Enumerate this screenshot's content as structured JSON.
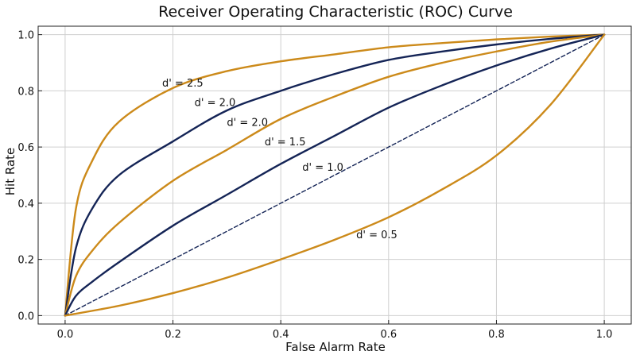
{
  "chart_data": {
    "type": "line",
    "title": "Receiver Operating Characteristic (ROC) Curve",
    "xlabel": "False Alarm Rate",
    "ylabel": "Hit Rate",
    "xlim": [
      -0.05,
      1.05
    ],
    "ylim": [
      -0.03,
      1.03
    ],
    "xticks": [
      0.0,
      0.2,
      0.4,
      0.6,
      0.8,
      1.0
    ],
    "yticks": [
      0.0,
      0.2,
      0.4,
      0.6,
      0.8,
      1.0
    ],
    "xtick_labels": [
      "0.0",
      "0.2",
      "0.4",
      "0.6",
      "0.8",
      "1.0"
    ],
    "ytick_labels": [
      "0.0",
      "0.2",
      "0.4",
      "0.6",
      "0.8",
      "1.0"
    ],
    "grid": true,
    "colors": {
      "gold": "#cc8a1a",
      "navy": "#142456"
    },
    "series": [
      {
        "d_prime": 2.5,
        "color": "gold",
        "style": "solid",
        "x": [
          0,
          0.02,
          0.05,
          0.1,
          0.2,
          0.3,
          0.4,
          0.5,
          0.6,
          0.7,
          0.8,
          0.9,
          1.0
        ],
        "y": [
          0,
          0.38,
          0.55,
          0.69,
          0.81,
          0.87,
          0.905,
          0.93,
          0.955,
          0.97,
          0.983,
          0.993,
          1.0
        ]
      },
      {
        "d_prime": 2.0,
        "color": "navy",
        "style": "solid",
        "x": [
          0,
          0.02,
          0.05,
          0.1,
          0.2,
          0.3,
          0.4,
          0.5,
          0.6,
          0.7,
          0.8,
          0.9,
          1.0
        ],
        "y": [
          0,
          0.24,
          0.38,
          0.5,
          0.62,
          0.73,
          0.8,
          0.86,
          0.91,
          0.94,
          0.965,
          0.985,
          1.0
        ]
      },
      {
        "d_prime": 2.0,
        "color": "gold",
        "style": "solid",
        "x": [
          0,
          0.02,
          0.05,
          0.1,
          0.2,
          0.3,
          0.4,
          0.5,
          0.6,
          0.7,
          0.8,
          0.9,
          1.0
        ],
        "y": [
          0,
          0.14,
          0.23,
          0.33,
          0.48,
          0.59,
          0.7,
          0.78,
          0.85,
          0.9,
          0.94,
          0.975,
          1.0
        ]
      },
      {
        "d_prime": 1.5,
        "color": "navy",
        "style": "solid",
        "x": [
          0,
          0.02,
          0.05,
          0.1,
          0.2,
          0.3,
          0.4,
          0.5,
          0.6,
          0.7,
          0.8,
          0.9,
          1.0
        ],
        "y": [
          0,
          0.07,
          0.12,
          0.19,
          0.32,
          0.43,
          0.54,
          0.64,
          0.74,
          0.82,
          0.89,
          0.95,
          1.0
        ]
      },
      {
        "d_prime": 1.0,
        "color": "navy",
        "style": "dashed",
        "x": [
          0,
          1.0
        ],
        "y": [
          0,
          1.0
        ]
      },
      {
        "d_prime": 0.5,
        "color": "gold",
        "style": "solid",
        "x": [
          0,
          0.1,
          0.2,
          0.3,
          0.4,
          0.5,
          0.6,
          0.7,
          0.8,
          0.9,
          1.0
        ],
        "y": [
          0,
          0.035,
          0.08,
          0.135,
          0.2,
          0.27,
          0.35,
          0.45,
          0.57,
          0.75,
          1.0
        ]
      }
    ],
    "annotations": [
      {
        "text": "d' = 2.5",
        "x": 0.18,
        "y": 0.83
      },
      {
        "text": "d' = 2.0",
        "x": 0.24,
        "y": 0.76
      },
      {
        "text": "d' = 2.0",
        "x": 0.3,
        "y": 0.69
      },
      {
        "text": "d' = 1.5",
        "x": 0.37,
        "y": 0.62
      },
      {
        "text": "d' = 1.0",
        "x": 0.44,
        "y": 0.53
      },
      {
        "text": "d' = 0.5",
        "x": 0.54,
        "y": 0.29
      }
    ]
  }
}
